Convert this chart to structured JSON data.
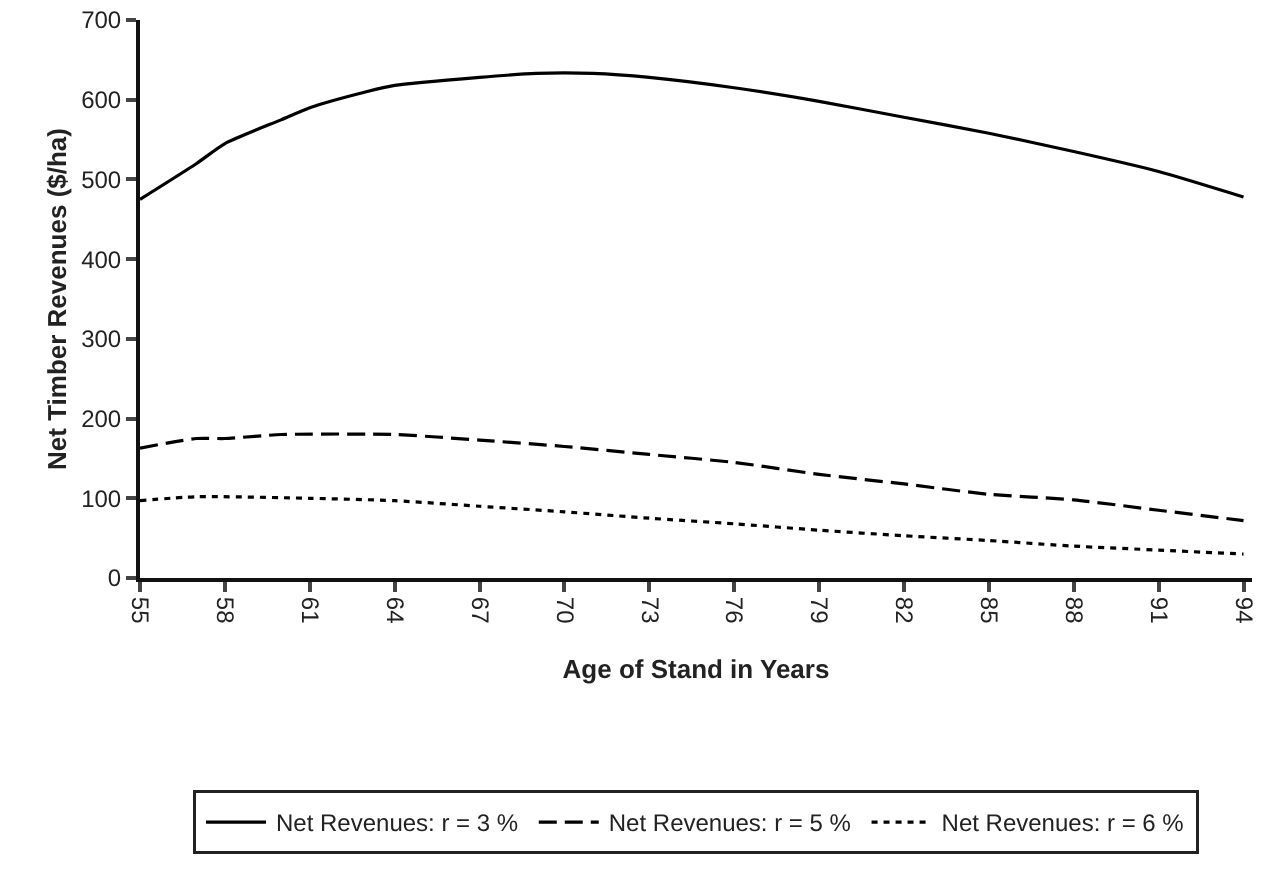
{
  "chart_data": {
    "type": "line",
    "xlabel": "Age of Stand in Years",
    "ylabel": "Net Timber Revenues ($/ha)",
    "xlim": [
      55,
      94.3
    ],
    "xticks": [
      55,
      58,
      61,
      64,
      67,
      70,
      73,
      76,
      79,
      82,
      85,
      88,
      91,
      94
    ],
    "ylim": [
      0,
      700
    ],
    "yticks": [
      0,
      100,
      200,
      300,
      400,
      500,
      600,
      700
    ],
    "grid": false,
    "legend": "bottom",
    "series": [
      {
        "name": "Net Revenues: r = 3 %",
        "color": "#000000",
        "line_style": "solid",
        "x": [
          55,
          57,
          58,
          60,
          61,
          63,
          64,
          67,
          69,
          71,
          73,
          76,
          79,
          82,
          85,
          88,
          91,
          94
        ],
        "values": [
          475,
          520,
          545,
          575,
          590,
          610,
          618,
          628,
          633,
          633,
          628,
          615,
          598,
          578,
          558,
          535,
          510,
          478
        ]
      },
      {
        "name": "Net Revenues: r = 5 %",
        "color": "#000000",
        "line_style": "dashed",
        "x": [
          55,
          57,
          58,
          60,
          64,
          67,
          70,
          73,
          76,
          79,
          82,
          85,
          88,
          91,
          94
        ],
        "values": [
          163,
          175,
          175,
          180,
          180,
          173,
          165,
          155,
          145,
          130,
          118,
          105,
          98,
          85,
          72
        ]
      },
      {
        "name": "Net Revenues: r = 6 %",
        "color": "#000000",
        "line_style": "dotted",
        "x": [
          55,
          57,
          61,
          64,
          67,
          70,
          73,
          76,
          79,
          82,
          85,
          88,
          91,
          94
        ],
        "values": [
          97,
          102,
          100,
          97,
          90,
          83,
          75,
          68,
          60,
          53,
          47,
          40,
          35,
          30
        ]
      }
    ]
  }
}
